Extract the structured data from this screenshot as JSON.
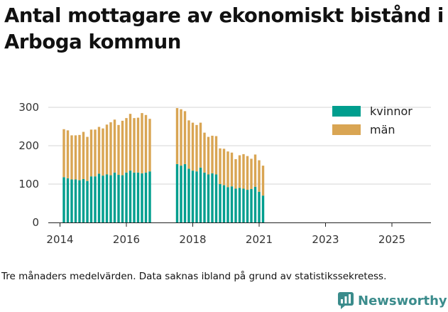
{
  "title": "Antal mottagare av ekonomiskt bistånd i Arboga kommun",
  "footnote": "Tre månaders medelvärden. Data saknas ibland på grund av statistikssekretess.",
  "brand": {
    "name": "Newsworthy",
    "color": "#3b8c8c",
    "icon": "newsworthy-logo-icon"
  },
  "chart_data": {
    "type": "bar",
    "stacked": true,
    "ylim": [
      0,
      300
    ],
    "yticks": [
      0,
      100,
      200,
      300
    ],
    "xticks": [
      "2014",
      "2016",
      "2018",
      "2021",
      "2023",
      "2025"
    ],
    "xtick_positions": [
      0,
      17,
      34,
      51,
      68,
      85
    ],
    "x_axis_domain": [
      -3,
      95
    ],
    "legend_position": "top-right",
    "grid": true,
    "series": [
      {
        "name": "kvinnor",
        "color": "#009e8e",
        "values": [
          118,
          115,
          112,
          112,
          110,
          113,
          108,
          120,
          120,
          127,
          122,
          125,
          123,
          130,
          124,
          123,
          130,
          135,
          130,
          130,
          128,
          130,
          133,
          152,
          148,
          152,
          140,
          135,
          133,
          143,
          130,
          125,
          128,
          125,
          100,
          97,
          92,
          94,
          88,
          90,
          88,
          85,
          87,
          93,
          80,
          70
        ]
      },
      {
        "name": "män",
        "color": "#d9a553",
        "values": [
          125,
          125,
          115,
          115,
          118,
          123,
          115,
          122,
          122,
          122,
          123,
          130,
          138,
          138,
          130,
          142,
          142,
          148,
          142,
          143,
          157,
          150,
          137,
          146,
          147,
          138,
          126,
          125,
          121,
          117,
          104,
          98,
          98,
          100,
          93,
          95,
          93,
          88,
          77,
          85,
          90,
          88,
          79,
          84,
          82,
          78
        ]
      }
    ],
    "bar_x_index": [
      1,
      2,
      3,
      4,
      5,
      6,
      7,
      8,
      9,
      10,
      11,
      12,
      13,
      14,
      15,
      16,
      17,
      18,
      19,
      20,
      21,
      22,
      23,
      30,
      31,
      32,
      33,
      34,
      35,
      36,
      37,
      38,
      39,
      40,
      41,
      42,
      43,
      44,
      45,
      46,
      47,
      48,
      49,
      50,
      51,
      52
    ]
  }
}
